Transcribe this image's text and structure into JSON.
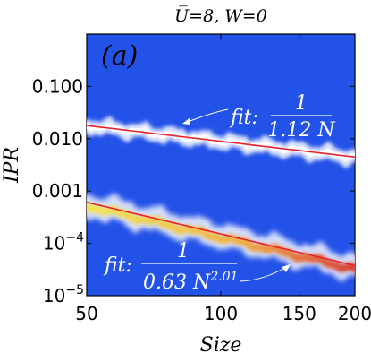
{
  "chart_data": {
    "type": "heatmap",
    "title": "U̅=8, W=0",
    "panel_label": "(a)",
    "xlabel": "Size",
    "ylabel": "IPR",
    "x_scale": "log",
    "y_scale": "log",
    "xlim": [
      50,
      200
    ],
    "ylim": [
      1e-05,
      1
    ],
    "x_ticks": [
      {
        "value": 50,
        "label": "50"
      },
      {
        "value": 100,
        "label": "100"
      },
      {
        "value": 150,
        "label": "150"
      },
      {
        "value": 200,
        "label": "200"
      }
    ],
    "y_ticks": [
      {
        "value": 0.1,
        "label": "0.100"
      },
      {
        "value": 0.01,
        "label": "0.010"
      },
      {
        "value": 0.001,
        "label": "0.001"
      },
      {
        "value": 0.0001,
        "label": "10",
        "exp": "−4"
      },
      {
        "value": 1e-05,
        "label": "10",
        "exp": "−5"
      }
    ],
    "series": [
      {
        "name": "upper",
        "fit_prefix": "fit:",
        "fit_num": "1",
        "fit_den": "1.12 N",
        "fit_coef": 1.12,
        "fit_exp": 1.0,
        "color": "#e8232a",
        "band_color": "#ffffff"
      },
      {
        "name": "lower",
        "fit_prefix": "fit:",
        "fit_num": "1",
        "fit_den": "0.63 N",
        "fit_den_exp": "2.01",
        "fit_coef": 0.63,
        "fit_exp": 2.01,
        "color": "#e8232a",
        "band_color": "#f5e64a"
      }
    ],
    "colors": {
      "background": "#2352e8",
      "fit_line": "#e8232a",
      "density_low": "#ffffff",
      "density_mid": "#f5e64a",
      "density_high": "#d9342b"
    },
    "grid": false,
    "legend": "none"
  }
}
